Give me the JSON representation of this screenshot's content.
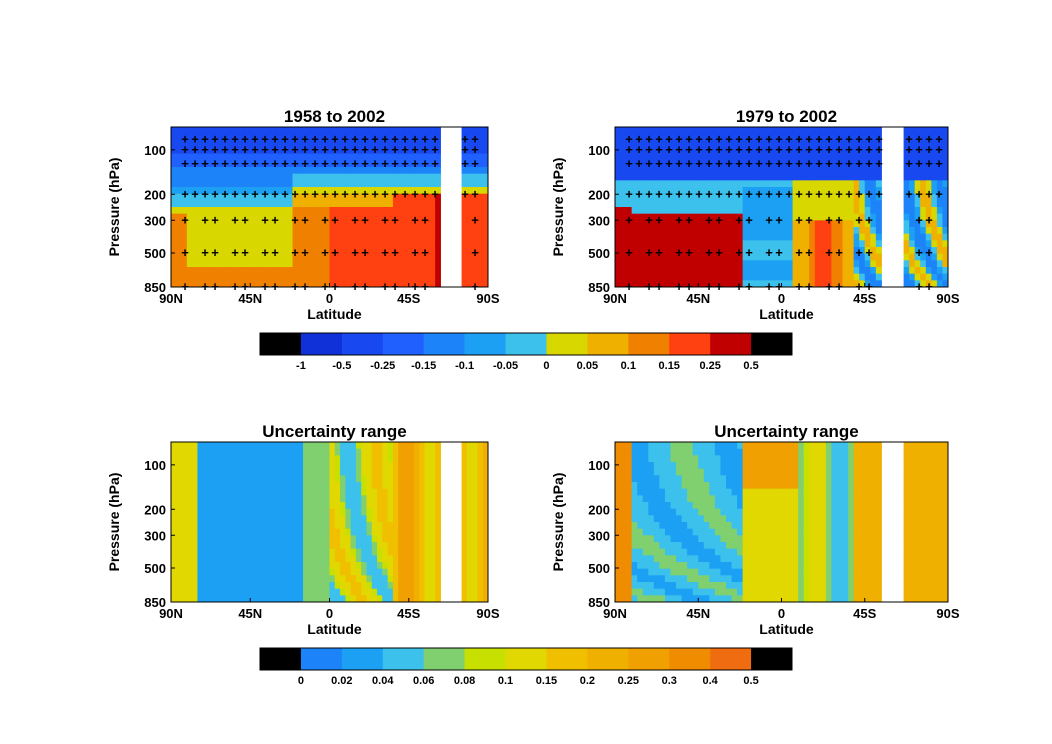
{
  "chart_data": [
    {
      "type": "heatmap",
      "title": "1958 to 2002",
      "xlabel": "Latitude",
      "ylabel": "Pressure (hPa)",
      "x_ticks": [
        "90N",
        "45N",
        "0",
        "45S",
        "90S"
      ],
      "y_ticks": [
        "100",
        "200",
        "300",
        "500",
        "850"
      ],
      "yscale": "log",
      "ylim": [
        850,
        70
      ],
      "significance_markers": "+",
      "colorbar": "trend"
    },
    {
      "type": "heatmap",
      "title": "1979 to 2002",
      "xlabel": "Latitude",
      "ylabel": "Pressure (hPa)",
      "x_ticks": [
        "90N",
        "45N",
        "0",
        "45S",
        "90S"
      ],
      "y_ticks": [
        "100",
        "200",
        "300",
        "500",
        "850"
      ],
      "yscale": "log",
      "ylim": [
        850,
        70
      ],
      "significance_markers": "+",
      "colorbar": "trend"
    },
    {
      "type": "heatmap",
      "title": "Uncertainty range",
      "xlabel": "Latitude",
      "ylabel": "Pressure (hPa)",
      "x_ticks": [
        "90N",
        "45N",
        "0",
        "45S",
        "90S"
      ],
      "y_ticks": [
        "100",
        "200",
        "300",
        "500",
        "850"
      ],
      "yscale": "log",
      "ylim": [
        850,
        70
      ],
      "colorbar": "uncertainty"
    },
    {
      "type": "heatmap",
      "title": "Uncertainty range",
      "xlabel": "Latitude",
      "ylabel": "Pressure (hPa)",
      "x_ticks": [
        "90N",
        "45N",
        "0",
        "45S",
        "90S"
      ],
      "y_ticks": [
        "100",
        "200",
        "300",
        "500",
        "850"
      ],
      "yscale": "log",
      "ylim": [
        850,
        70
      ],
      "colorbar": "uncertainty"
    }
  ],
  "colorbars": {
    "trend": {
      "colors": [
        "#000000",
        "#1030d8",
        "#1848f0",
        "#2060ff",
        "#1c84f8",
        "#1ca0f4",
        "#3cc0ec",
        "#d8d800",
        "#f0b000",
        "#f08000",
        "#ff4010",
        "#c00000",
        "#000000"
      ],
      "labels": [
        "-1",
        "-0.5",
        "-0.25",
        "-0.15",
        "-0.1",
        "-0.05",
        "0",
        "0.05",
        "0.1",
        "0.15",
        "0.25",
        "0.5"
      ]
    },
    "uncertainty": {
      "colors": [
        "#000000",
        "#1c84f8",
        "#1ca0f4",
        "#3cc0ec",
        "#80d070",
        "#c8e000",
        "#e0d800",
        "#f0c000",
        "#f0b000",
        "#f0a000",
        "#f08c00",
        "#f06c10",
        "#000000"
      ],
      "labels": [
        "0",
        "0.02",
        "0.04",
        "0.06",
        "0.08",
        "0.1",
        "0.15",
        "0.2",
        "0.25",
        "0.3",
        "0.4",
        "0.5"
      ]
    }
  }
}
